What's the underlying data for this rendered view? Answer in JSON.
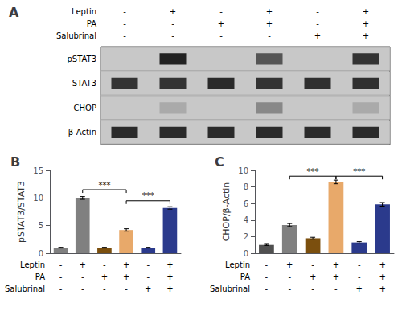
{
  "chart_data": [
    {
      "type": "blot",
      "title": "A",
      "treatments": [
        {
          "name": "Leptin",
          "values": [
            "-",
            "+",
            "-",
            "+",
            "-",
            "+"
          ]
        },
        {
          "name": "PA",
          "values": [
            "-",
            "-",
            "+",
            "+",
            "-",
            "+"
          ]
        },
        {
          "name": "Salubrinal",
          "values": [
            "-",
            "-",
            "-",
            "-",
            "+",
            "+"
          ]
        }
      ],
      "series": [
        {
          "name": "pSTAT3",
          "colors": [
            null,
            "#222222",
            null,
            "#555555",
            null,
            "#333333"
          ]
        },
        {
          "name": "STAT3",
          "colors": [
            "#333333",
            "#333333",
            "#2a2a2a",
            "#333333",
            "#2f2f2f",
            "#2f2f2f"
          ]
        },
        {
          "name": "CHOP",
          "colors": [
            null,
            "#aaaaaa",
            null,
            "#888888",
            null,
            "#aaaaaa"
          ]
        },
        {
          "name": "β-Actin",
          "colors": [
            "#2a2a2a",
            "#2a2a2a",
            "#2a2a2a",
            "#2a2a2a",
            "#2a2a2a",
            "#2a2a2a"
          ]
        }
      ]
    },
    {
      "type": "bar",
      "title": "B",
      "categories": [
        null,
        null,
        null,
        null,
        null,
        null
      ],
      "values": [
        1.0,
        10.0,
        1.0,
        4.2,
        1.0,
        8.2
      ],
      "errors": [
        0.07,
        0.25,
        0.07,
        0.22,
        0.07,
        0.22
      ],
      "colors": [
        "#808080",
        "#808080",
        "#7B4F0E",
        "#E8A96A",
        "#2B3A8C",
        "#2B3A8C"
      ],
      "ylabel": "pSTAT3/STAT3",
      "ylim": [
        0,
        15
      ],
      "yticks": [
        0,
        5,
        10,
        15
      ],
      "grid": false,
      "treatments": [
        {
          "name": "Leptin",
          "values": [
            "-",
            "+",
            "-",
            "+",
            "-",
            "+"
          ]
        },
        {
          "name": "PA",
          "values": [
            "-",
            "-",
            "+",
            "+",
            "-",
            "+"
          ]
        },
        {
          "name": "Salubrinal",
          "values": [
            "-",
            "-",
            "-",
            "-",
            "+",
            "+"
          ]
        }
      ],
      "annotations": [
        {
          "text": "***",
          "x1": 1,
          "x2": 3,
          "y": 11.5
        },
        {
          "text": "***",
          "x1": 3,
          "x2": 5,
          "y": 9.5
        }
      ]
    },
    {
      "type": "bar",
      "title": "C",
      "categories": [
        null,
        null,
        null,
        null,
        null,
        null
      ],
      "values": [
        1.0,
        3.4,
        1.8,
        8.6,
        1.3,
        5.9
      ],
      "errors": [
        0.07,
        0.18,
        0.12,
        0.22,
        0.1,
        0.22
      ],
      "colors": [
        "#505050",
        "#808080",
        "#7B4F0E",
        "#E8A96A",
        "#2B3A8C",
        "#2B3A8C"
      ],
      "ylabel": "CHOP/β-Actin",
      "ylim": [
        0,
        10
      ],
      "yticks": [
        0,
        2,
        4,
        6,
        8,
        10
      ],
      "grid": false,
      "treatments": [
        {
          "name": "Leptin",
          "values": [
            "-",
            "+",
            "-",
            "+",
            "-",
            "+"
          ]
        },
        {
          "name": "PA",
          "values": [
            "-",
            "-",
            "+",
            "+",
            "-",
            "+"
          ]
        },
        {
          "name": "Salubrinal",
          "values": [
            "-",
            "-",
            "-",
            "-",
            "+",
            "+"
          ]
        }
      ],
      "annotations": [
        {
          "text": "***",
          "x1": 1,
          "x2": 3,
          "y": 9.3
        },
        {
          "text": "***",
          "x1": 3,
          "x2": 5,
          "y": 9.3
        }
      ]
    }
  ]
}
